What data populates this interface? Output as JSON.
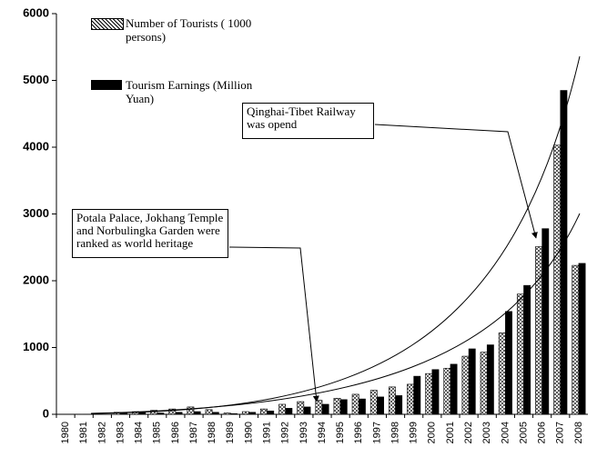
{
  "chart_data": {
    "type": "bar",
    "categories": [
      "1980",
      "1981",
      "1982",
      "1983",
      "1984",
      "1985",
      "1986",
      "1987",
      "1988",
      "1989",
      "1990",
      "1991",
      "1992",
      "1993",
      "1994",
      "1995",
      "1996",
      "1997",
      "1998",
      "1999",
      "2000",
      "2001",
      "2002",
      "2003",
      "2004",
      "2005",
      "2006",
      "2007",
      "2008"
    ],
    "series": [
      {
        "name": "Number of Tourists ( 1000 persons)",
        "color": "#ffffff",
        "pattern": "crosshatch",
        "values": [
          0,
          2,
          5,
          30,
          40,
          60,
          80,
          110,
          70,
          20,
          40,
          80,
          150,
          190,
          210,
          240,
          300,
          360,
          410,
          450,
          610,
          690,
          870,
          930,
          1220,
          1800,
          2510,
          4030,
          2230
        ]
      },
      {
        "name": "Tourism Earnings (Million Yuan)",
        "color": "#000000",
        "values": [
          0,
          0,
          2,
          20,
          30,
          20,
          30,
          40,
          30,
          10,
          30,
          50,
          90,
          110,
          150,
          220,
          230,
          260,
          280,
          570,
          670,
          750,
          980,
          1040,
          1540,
          1930,
          2780,
          4850,
          2260
        ]
      }
    ],
    "ylim": [
      0,
      6000
    ],
    "yticks": [
      0,
      1000,
      2000,
      3000,
      4000,
      5000,
      6000
    ],
    "annotations": [
      "Qinghai-Tibet Railway was opend",
      "Potala Palace, Jokhang Temple and Norbulingka Garden were ranked as world heritage"
    ]
  }
}
